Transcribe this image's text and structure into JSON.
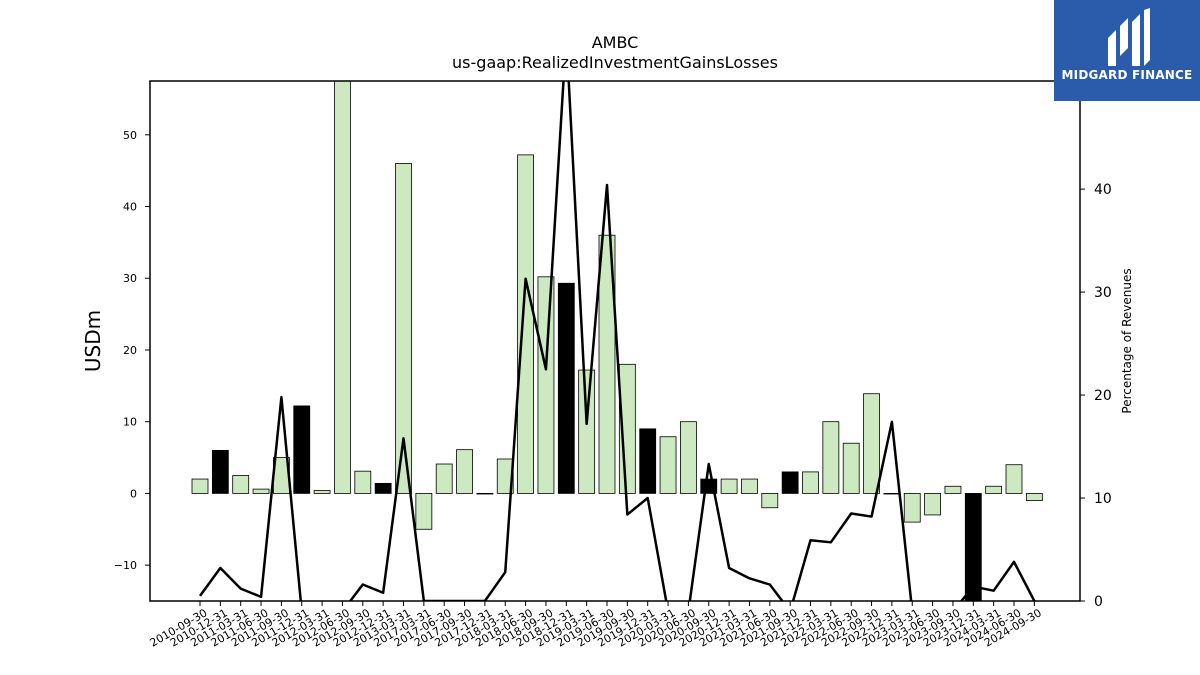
{
  "chart_data": {
    "type": "bar",
    "title": "AMBC",
    "subtitle": "us-gaap:RealizedInvestmentGainsLosses",
    "ylabel": "USDm",
    "y2label": "Percentage of Revenues",
    "ylim": [
      -15,
      57.5
    ],
    "y2lim": [
      0,
      50.5
    ],
    "yticks": [
      -10,
      0,
      10,
      20,
      30,
      40,
      50
    ],
    "y2ticks": [
      0,
      10,
      20,
      30,
      40,
      50
    ],
    "categories": [
      "2010-09-30",
      "2010-12-31",
      "2011-03-31",
      "2011-06-30",
      "2011-09-30",
      "2011-12-31",
      "2012-03-31",
      "2012-06-30",
      "2012-09-30",
      "2012-12-31",
      "2013-03-31",
      "2017-03-31",
      "2017-06-30",
      "2017-09-30",
      "2017-12-31",
      "2018-03-31",
      "2018-06-30",
      "2018-09-30",
      "2018-12-31",
      "2019-03-31",
      "2019-06-30",
      "2019-09-30",
      "2019-12-31",
      "2020-03-31",
      "2020-06-30",
      "2020-09-30",
      "2020-12-31",
      "2021-03-31",
      "2021-06-30",
      "2021-09-30",
      "2021-12-31",
      "2022-03-31",
      "2022-06-30",
      "2022-09-30",
      "2022-12-31",
      "2023-03-31",
      "2023-06-30",
      "2023-09-30",
      "2023-12-31",
      "2024-03-31",
      "2024-06-30",
      "2024-09-30"
    ],
    "series": [
      {
        "values": [
          2.0,
          6.0,
          2.5,
          0.6,
          5.0,
          12.2,
          0.4,
          58.0,
          3.1,
          1.4,
          46.0,
          -5.0,
          4.1,
          6.1,
          0.0,
          4.8,
          47.2,
          30.2,
          29.3,
          17.2,
          36.0,
          18.0,
          9.0,
          7.9,
          10.0,
          2.0,
          2.0,
          2.0,
          -2.0,
          3.0,
          3.0,
          10.0,
          7.0,
          13.9,
          0.0,
          -4.0,
          -3.0,
          1.0,
          -16.0,
          1.0,
          4.0,
          -1.0
        ],
        "highlight": [
          false,
          true,
          false,
          false,
          false,
          true,
          false,
          false,
          false,
          true,
          false,
          false,
          false,
          false,
          false,
          false,
          false,
          false,
          true,
          false,
          false,
          false,
          true,
          false,
          false,
          true,
          false,
          false,
          false,
          true,
          false,
          false,
          false,
          false,
          false,
          false,
          false,
          false,
          true,
          false,
          false,
          false
        ]
      },
      {
        "values": [
          0.5,
          3.2,
          1.2,
          0.4,
          19.8,
          -1.0,
          null,
          -1.0,
          1.6,
          0.8,
          15.8,
          0.0,
          0.0,
          0.0,
          0.0,
          2.8,
          31.3,
          22.5,
          55.0,
          17.2,
          40.4,
          8.4,
          10.0,
          -1.0,
          -1.0,
          13.3,
          3.2,
          2.2,
          1.6,
          -1.0,
          5.9,
          5.7,
          8.5,
          8.2,
          17.4,
          -1.0,
          -1.0,
          -1.0,
          1.4,
          1.0,
          3.8,
          0.0
        ],
        "axis": "right"
      }
    ],
    "grid": false,
    "colors": {
      "bar": "#cce9c2",
      "bar_highlight": "#000000",
      "line": "#000000",
      "axes": "#000000"
    }
  },
  "logo": {
    "text": "MIDGARD FINANCE"
  }
}
